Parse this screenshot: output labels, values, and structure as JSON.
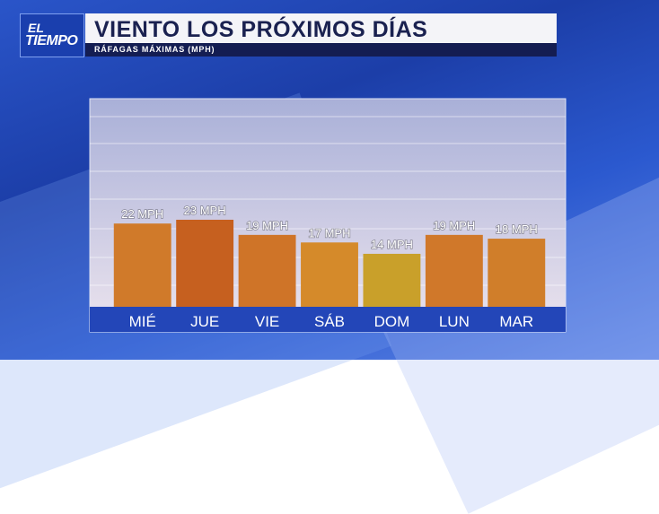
{
  "logo": {
    "line1": "EL",
    "line2": "TIEMPO"
  },
  "chart_data": {
    "type": "bar",
    "title": "VIENTO LOS PRÓXIMOS DÍAS",
    "subtitle": "RÁFAGAS MÁXIMAS (MPH)",
    "categories": [
      "MIÉ",
      "JUE",
      "VIE",
      "SÁB",
      "DOM",
      "LUN",
      "MAR"
    ],
    "values": [
      22,
      23,
      19,
      17,
      14,
      19,
      18
    ],
    "value_labels": [
      "22 MPH",
      "23 MPH",
      "19 MPH",
      "17 MPH",
      "14 MPH",
      "19 MPH",
      "18 MPH"
    ],
    "colors": [
      "#d07a2a",
      "#c6601f",
      "#cf7428",
      "#d58a2a",
      "#c9a02a",
      "#d0782a",
      "#d07e2a"
    ],
    "ylim": [
      0,
      55
    ]
  }
}
